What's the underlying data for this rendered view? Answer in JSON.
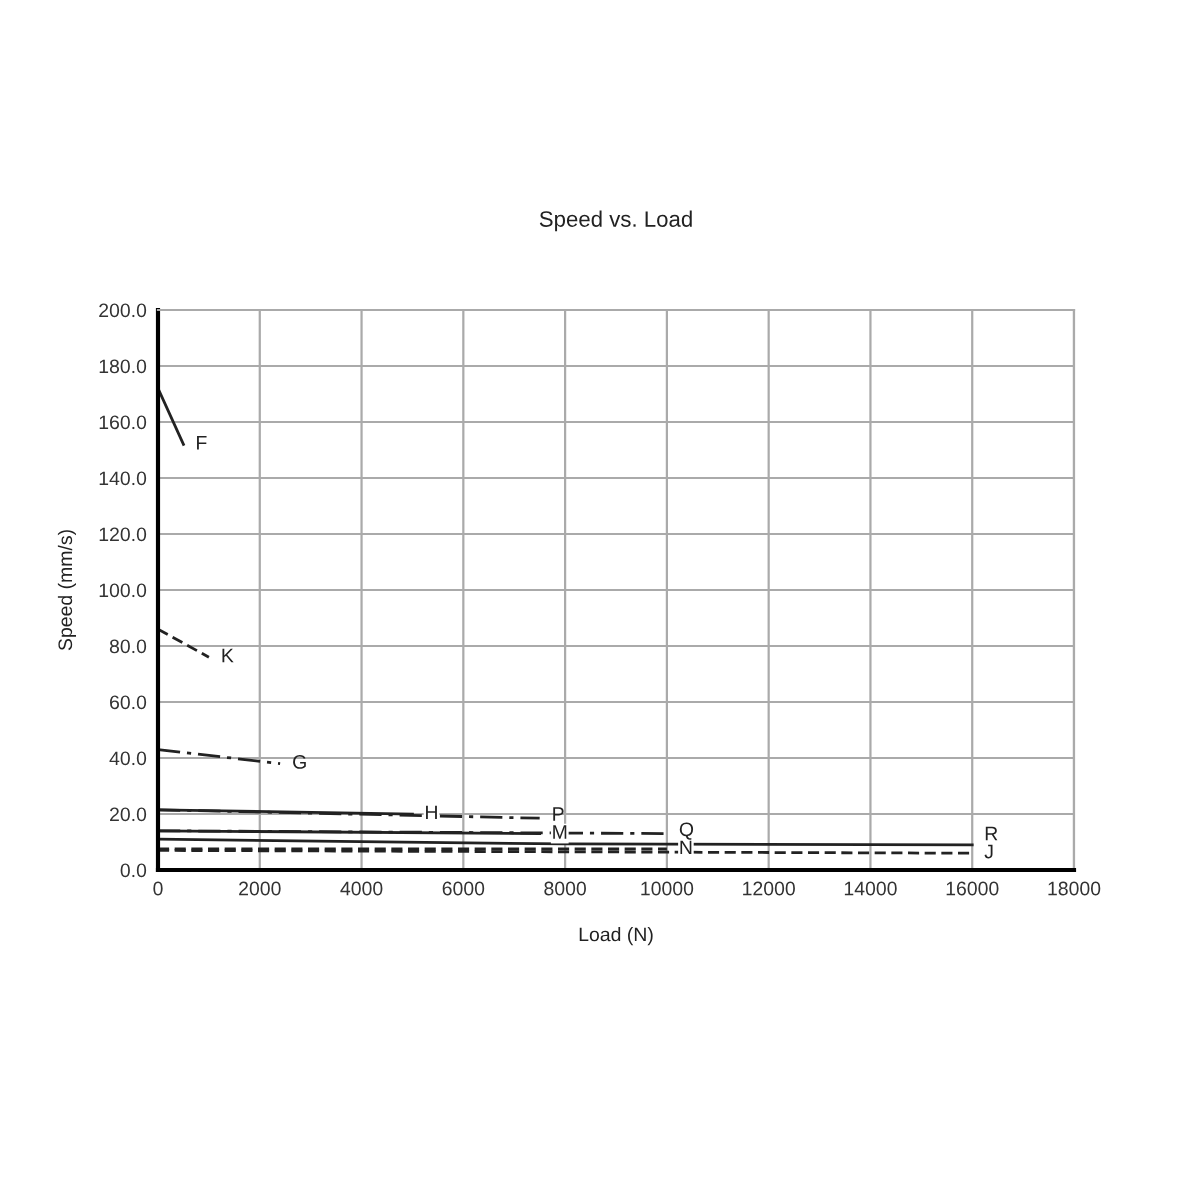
{
  "chart_data": {
    "type": "line",
    "title": "Speed vs. Load",
    "xlabel": "Load (N)",
    "ylabel": "Speed (mm/s)",
    "xlim": [
      0,
      18000
    ],
    "xticks": [
      0,
      2000,
      4000,
      6000,
      8000,
      10000,
      12000,
      14000,
      16000,
      18000
    ],
    "ylim": [
      0,
      200
    ],
    "yticks": [
      {
        "value": 0,
        "label": "0.0"
      },
      {
        "value": 20,
        "label": "20.0"
      },
      {
        "value": 40,
        "label": "40.0"
      },
      {
        "value": 60,
        "label": "60.0"
      },
      {
        "value": 80,
        "label": "80.0"
      },
      {
        "value": 100,
        "label": "100.0"
      },
      {
        "value": 120,
        "label": "120.0"
      },
      {
        "value": 140,
        "label": "140.0"
      },
      {
        "value": 160,
        "label": "160.0"
      },
      {
        "value": 180,
        "label": "180.0"
      },
      {
        "value": 200,
        "label": "200.0"
      }
    ],
    "grid": true,
    "marker": "none",
    "series": [
      {
        "name": "F",
        "color": "#222222",
        "line_style": "solid",
        "x": [
          0,
          500
        ],
        "values": [
          172,
          152
        ]
      },
      {
        "name": "K",
        "color": "#222222",
        "line_style": "dashed",
        "x": [
          0,
          1000
        ],
        "values": [
          86,
          76
        ]
      },
      {
        "name": "G",
        "color": "#222222",
        "line_style": "dashdot",
        "x": [
          0,
          2400
        ],
        "values": [
          43,
          38
        ]
      },
      {
        "name": "H",
        "color": "#222222",
        "line_style": "solid",
        "x": [
          0,
          5000
        ],
        "values": [
          21.5,
          20
        ]
      },
      {
        "name": "P",
        "color": "#222222",
        "line_style": "dashdot",
        "x": [
          0,
          7500
        ],
        "values": [
          21.5,
          18.5
        ]
      },
      {
        "name": "M",
        "color": "#222222",
        "line_style": "solid",
        "x": [
          0,
          7500
        ],
        "values": [
          14,
          13
        ]
      },
      {
        "name": "Q",
        "color": "#222222",
        "line_style": "dashdot",
        "x": [
          0,
          10000
        ],
        "values": [
          14,
          13
        ]
      },
      {
        "name": "N",
        "color": "#222222",
        "line_style": "dashed",
        "x": [
          0,
          10000
        ],
        "values": [
          7.5,
          7.5
        ]
      },
      {
        "name": "R",
        "color": "#222222",
        "line_style": "solid",
        "x": [
          0,
          8000,
          16000
        ],
        "values": [
          11,
          9.3,
          9
        ]
      },
      {
        "name": "J",
        "color": "#222222",
        "line_style": "dashed",
        "x": [
          0,
          16000
        ],
        "values": [
          7,
          6
        ]
      }
    ]
  }
}
